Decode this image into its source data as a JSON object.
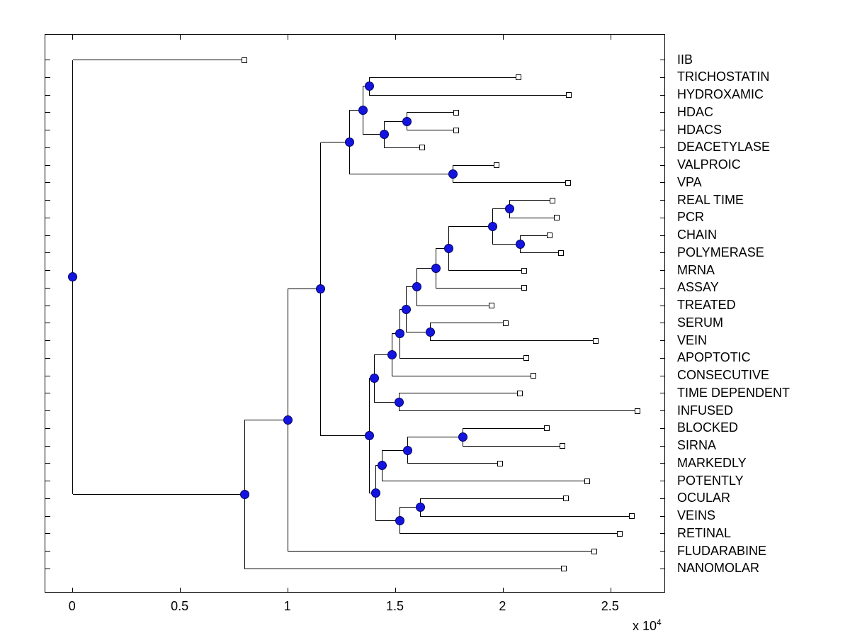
{
  "figure": {
    "background": "#ffffff",
    "line_color": "#000000",
    "node_marker_color": "#1414e0",
    "leaf_marker_color": "#ffffff"
  },
  "axis": {
    "x_tick_labels": [
      "0",
      "0.5",
      "1",
      "1.5",
      "2",
      "2.5"
    ],
    "x_tick_values": [
      0,
      5000,
      10000,
      15000,
      20000,
      25000
    ],
    "exponent_prefix": "x 10",
    "exponent_power": "4"
  },
  "chart_data": {
    "type": "dendrogram",
    "orientation": "horizontal-leaves-right",
    "title": "",
    "xlabel": "",
    "ylabel": "",
    "xlim": [
      0,
      27500
    ],
    "x_units_multiplier": 10000,
    "leaves": [
      {
        "label": "IIB",
        "value": 7950
      },
      {
        "label": "TRICHOSTATIN",
        "value": 20690
      },
      {
        "label": "HYDROXAMIC",
        "value": 23020
      },
      {
        "label": "HDAC",
        "value": 17790
      },
      {
        "label": "HDACS",
        "value": 17790
      },
      {
        "label": "DEACETYLASE",
        "value": 16210
      },
      {
        "label": "VALPROIC",
        "value": 19670
      },
      {
        "label": "VPA",
        "value": 22990
      },
      {
        "label": "REAL TIME",
        "value": 22270
      },
      {
        "label": "PCR",
        "value": 22470
      },
      {
        "label": "CHAIN",
        "value": 22130
      },
      {
        "label": "POLYMERASE",
        "value": 22660
      },
      {
        "label": "MRNA",
        "value": 20950
      },
      {
        "label": "ASSAY",
        "value": 20950
      },
      {
        "label": "TREATED",
        "value": 19440
      },
      {
        "label": "SERUM",
        "value": 20090
      },
      {
        "label": "VEIN",
        "value": 24280
      },
      {
        "label": "APOPTOTIC",
        "value": 21050
      },
      {
        "label": "CONSECUTIVE",
        "value": 21380
      },
      {
        "label": "TIME DEPENDENT",
        "value": 20750
      },
      {
        "label": "INFUSED",
        "value": 26220
      },
      {
        "label": "BLOCKED",
        "value": 22010
      },
      {
        "label": "SIRNA",
        "value": 22730
      },
      {
        "label": "MARKEDLY",
        "value": 19830
      },
      {
        "label": "POTENTLY",
        "value": 23880
      },
      {
        "label": "OCULAR",
        "value": 22890
      },
      {
        "label": "VEINS",
        "value": 25960
      },
      {
        "label": "RETINAL",
        "value": 25400
      },
      {
        "label": "FLUDARABINE",
        "value": 24210
      },
      {
        "label": "NANOMOLAR",
        "value": 22790
      }
    ],
    "merges": [
      {
        "id": "N1",
        "a": "L1",
        "b": "L2",
        "value": 13770
      },
      {
        "id": "N2",
        "a": "L3",
        "b": "L4",
        "value": 15520
      },
      {
        "id": "N3",
        "a": "N2",
        "b": "L5",
        "value": 14460
      },
      {
        "id": "N4",
        "a": "N1",
        "b": "N3",
        "value": 13480
      },
      {
        "id": "N5",
        "a": "L6",
        "b": "L7",
        "value": 17660
      },
      {
        "id": "N6",
        "a": "N4",
        "b": "N5",
        "value": 12850
      },
      {
        "id": "N7",
        "a": "L8",
        "b": "L9",
        "value": 20290
      },
      {
        "id": "N8",
        "a": "L10",
        "b": "L11",
        "value": 20780
      },
      {
        "id": "N9",
        "a": "N7",
        "b": "N8",
        "value": 19500
      },
      {
        "id": "N10",
        "a": "N9",
        "b": "L12",
        "value": 17460
      },
      {
        "id": "N11",
        "a": "N10",
        "b": "L13",
        "value": 16870
      },
      {
        "id": "N12",
        "a": "N11",
        "b": "L14",
        "value": 15980
      },
      {
        "id": "N13",
        "a": "L15",
        "b": "L16",
        "value": 16600
      },
      {
        "id": "N14",
        "a": "N12",
        "b": "N13",
        "value": 15490
      },
      {
        "id": "N15",
        "a": "N14",
        "b": "L17",
        "value": 15190
      },
      {
        "id": "N16",
        "a": "N15",
        "b": "L18",
        "value": 14830
      },
      {
        "id": "N17",
        "a": "L19",
        "b": "L20",
        "value": 15160
      },
      {
        "id": "N18",
        "a": "N16",
        "b": "N17",
        "value": 14000
      },
      {
        "id": "N19",
        "a": "L21",
        "b": "L22",
        "value": 18120
      },
      {
        "id": "N20",
        "a": "N19",
        "b": "L23",
        "value": 15550
      },
      {
        "id": "N21",
        "a": "N20",
        "b": "L24",
        "value": 14360
      },
      {
        "id": "N22",
        "a": "L25",
        "b": "L26",
        "value": 16140
      },
      {
        "id": "N23",
        "a": "N22",
        "b": "L27",
        "value": 15190
      },
      {
        "id": "N24",
        "a": "N21",
        "b": "N23",
        "value": 14070
      },
      {
        "id": "N25",
        "a": "N18",
        "b": "N24",
        "value": 13770
      },
      {
        "id": "N26",
        "a": "N6",
        "b": "N25",
        "value": 11520
      },
      {
        "id": "N27",
        "a": "N26",
        "b": "L28",
        "value": 9990
      },
      {
        "id": "N28",
        "a": "N27",
        "b": "L29",
        "value": 7980
      },
      {
        "id": "N29",
        "a": "L0",
        "b": "N28",
        "value": 0
      }
    ]
  }
}
